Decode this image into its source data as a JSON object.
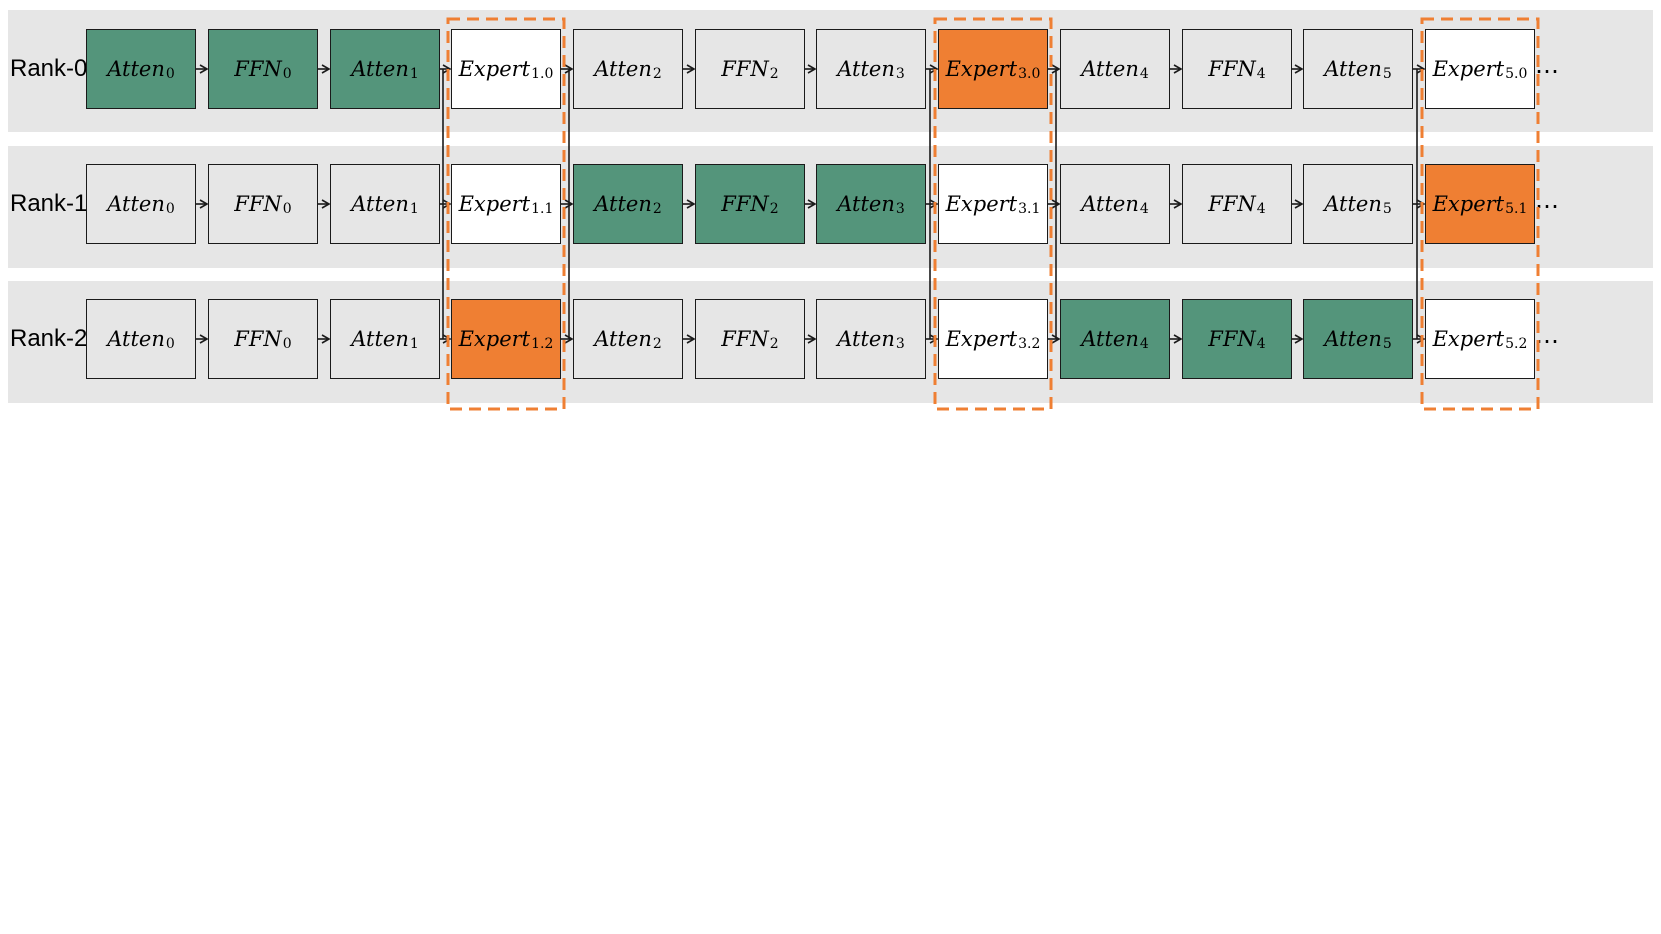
{
  "colors": {
    "band": "#e6e6e6",
    "idle": "#e6e6e6",
    "active": "#54957b",
    "expert_active": "#ef7f33",
    "expert_idle": "#ffffff",
    "dashed": "#ef7f33",
    "line": "#1a1a1a"
  },
  "rows": [
    {
      "label": "Rank-0",
      "ellipsis": "…",
      "blocks": [
        {
          "name": "Atten",
          "sub": "0",
          "state": "active"
        },
        {
          "name": "FFN",
          "sub": "0",
          "state": "active"
        },
        {
          "name": "Atten",
          "sub": "1",
          "state": "active"
        },
        {
          "name": "Expert",
          "sub": "1.0",
          "state": "expert_idle"
        },
        {
          "name": "Atten",
          "sub": "2",
          "state": "idle"
        },
        {
          "name": "FFN",
          "sub": "2",
          "state": "idle"
        },
        {
          "name": "Atten",
          "sub": "3",
          "state": "idle"
        },
        {
          "name": "Expert",
          "sub": "3.0",
          "state": "expert_active"
        },
        {
          "name": "Atten",
          "sub": "4",
          "state": "idle"
        },
        {
          "name": "FFN",
          "sub": "4",
          "state": "idle"
        },
        {
          "name": "Atten",
          "sub": "5",
          "state": "idle"
        },
        {
          "name": "Expert",
          "sub": "5.0",
          "state": "expert_idle"
        }
      ]
    },
    {
      "label": "Rank-1",
      "ellipsis": "…",
      "blocks": [
        {
          "name": "Atten",
          "sub": "0",
          "state": "idle"
        },
        {
          "name": "FFN",
          "sub": "0",
          "state": "idle"
        },
        {
          "name": "Atten",
          "sub": "1",
          "state": "idle"
        },
        {
          "name": "Expert",
          "sub": "1.1",
          "state": "expert_idle"
        },
        {
          "name": "Atten",
          "sub": "2",
          "state": "active"
        },
        {
          "name": "FFN",
          "sub": "2",
          "state": "active"
        },
        {
          "name": "Atten",
          "sub": "3",
          "state": "active"
        },
        {
          "name": "Expert",
          "sub": "3.1",
          "state": "expert_idle"
        },
        {
          "name": "Atten",
          "sub": "4",
          "state": "idle"
        },
        {
          "name": "FFN",
          "sub": "4",
          "state": "idle"
        },
        {
          "name": "Atten",
          "sub": "5",
          "state": "idle"
        },
        {
          "name": "Expert",
          "sub": "5.1",
          "state": "expert_active"
        }
      ]
    },
    {
      "label": "Rank-2",
      "ellipsis": "…",
      "blocks": [
        {
          "name": "Atten",
          "sub": "0",
          "state": "idle"
        },
        {
          "name": "FFN",
          "sub": "0",
          "state": "idle"
        },
        {
          "name": "Atten",
          "sub": "1",
          "state": "idle"
        },
        {
          "name": "Expert",
          "sub": "1.2",
          "state": "expert_active"
        },
        {
          "name": "Atten",
          "sub": "2",
          "state": "idle"
        },
        {
          "name": "FFN",
          "sub": "2",
          "state": "idle"
        },
        {
          "name": "Atten",
          "sub": "3",
          "state": "idle"
        },
        {
          "name": "Expert",
          "sub": "3.2",
          "state": "expert_idle"
        },
        {
          "name": "Atten",
          "sub": "4",
          "state": "active"
        },
        {
          "name": "FFN",
          "sub": "4",
          "state": "active"
        },
        {
          "name": "Atten",
          "sub": "5",
          "state": "active"
        },
        {
          "name": "Expert",
          "sub": "5.2",
          "state": "expert_idle"
        }
      ]
    }
  ]
}
